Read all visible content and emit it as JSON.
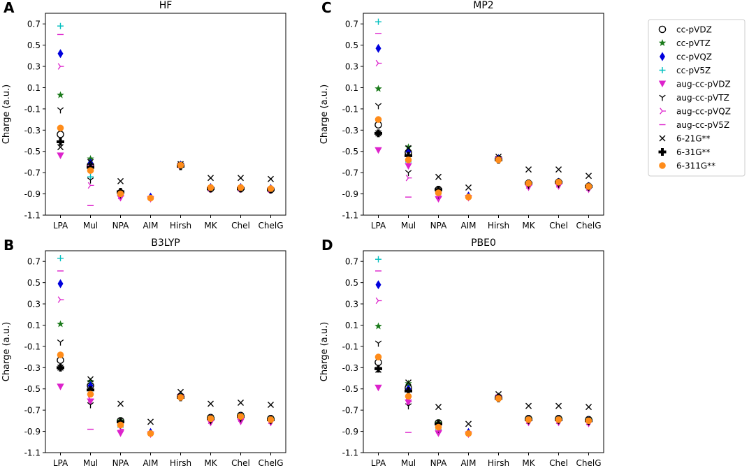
{
  "chart_data": {
    "type": "scatter",
    "categories": [
      "LPA",
      "Mul",
      "NPA",
      "AIM",
      "Hirsh",
      "MK",
      "Chel",
      "ChelG"
    ],
    "ylabel": "Charge (a.u.)",
    "ylim": [
      -1.1,
      0.8
    ],
    "yticks": [
      "0.7",
      "0.5",
      "0.3",
      "0.1",
      "-0.1",
      "-0.3",
      "-0.5",
      "-0.7",
      "-0.9",
      "-1.1"
    ],
    "legend": [
      {
        "name": "cc-pVDZ",
        "marker": "open-circle",
        "color": "#000000"
      },
      {
        "name": "cc-pVTZ",
        "marker": "star",
        "color": "#1a7a1a"
      },
      {
        "name": "cc-pVQZ",
        "marker": "thin-diamond",
        "color": "#0000dd"
      },
      {
        "name": "cc-pV5Z",
        "marker": "plus",
        "color": "#00bfbf"
      },
      {
        "name": "aug-cc-pVDZ",
        "marker": "triangle-down",
        "color": "#dd22cc"
      },
      {
        "name": "aug-cc-pVTZ",
        "marker": "tri-down",
        "color": "#000000"
      },
      {
        "name": "aug-cc-pVQZ",
        "marker": "tri-right",
        "color": "#dd22cc"
      },
      {
        "name": "aug-cc-pV5Z",
        "marker": "hline",
        "color": "#dd22cc"
      },
      {
        "name": "6-21G**",
        "marker": "x",
        "color": "#000000"
      },
      {
        "name": "6-31G**",
        "marker": "filled-plus",
        "color": "#000000"
      },
      {
        "name": "6-311G**",
        "marker": "filled-circle",
        "color": "#ff8c1a"
      }
    ],
    "panels": [
      {
        "letter": "A",
        "title": "HF",
        "series": [
          {
            "name": "cc-pVDZ",
            "values": [
              -0.34,
              -0.63,
              -0.89,
              null,
              -0.63,
              -0.85,
              -0.85,
              -0.86
            ]
          },
          {
            "name": "cc-pVTZ",
            "values": [
              0.03,
              -0.57,
              -0.88,
              null,
              -0.62,
              -0.84,
              -0.84,
              -0.85
            ]
          },
          {
            "name": "cc-pVQZ",
            "values": [
              0.42,
              -0.61,
              -0.89,
              -0.93,
              -0.63,
              -0.84,
              -0.84,
              -0.85
            ]
          },
          {
            "name": "cc-pV5Z",
            "values": [
              0.68,
              -0.74,
              -0.9,
              null,
              -0.63,
              -0.85,
              -0.85,
              -0.86
            ]
          },
          {
            "name": "aug-cc-pVDZ",
            "values": [
              -0.54,
              -0.66,
              -0.94,
              -0.95,
              -0.64,
              -0.86,
              -0.86,
              -0.87
            ]
          },
          {
            "name": "aug-cc-pVTZ",
            "values": [
              -0.11,
              -0.77,
              -0.91,
              null,
              -0.63,
              -0.85,
              -0.85,
              -0.86
            ]
          },
          {
            "name": "aug-cc-pVQZ",
            "values": [
              0.3,
              -0.82,
              -0.92,
              null,
              -0.63,
              -0.85,
              -0.85,
              -0.86
            ]
          },
          {
            "name": "aug-cc-pV5Z",
            "values": [
              0.6,
              -1.01,
              -0.92,
              null,
              -0.63,
              -0.85,
              -0.85,
              -0.86
            ]
          },
          {
            "name": "6-21G**",
            "values": [
              -0.46,
              -0.6,
              -0.78,
              null,
              -0.62,
              -0.75,
              -0.75,
              -0.76
            ]
          },
          {
            "name": "6-31G**",
            "values": [
              -0.41,
              -0.65,
              -0.88,
              null,
              -0.64,
              -0.85,
              -0.85,
              -0.86
            ]
          },
          {
            "name": "6-311G**",
            "values": [
              -0.28,
              -0.68,
              -0.9,
              -0.94,
              -0.63,
              -0.84,
              -0.84,
              -0.85
            ]
          }
        ]
      },
      {
        "letter": "C",
        "title": "MP2",
        "series": [
          {
            "name": "cc-pVDZ",
            "values": [
              -0.25,
              -0.51,
              -0.86,
              null,
              -0.57,
              -0.8,
              -0.79,
              -0.83
            ]
          },
          {
            "name": "cc-pVTZ",
            "values": [
              0.09,
              -0.46,
              -0.86,
              null,
              -0.56,
              -0.8,
              -0.79,
              -0.83
            ]
          },
          {
            "name": "cc-pVQZ",
            "values": [
              0.47,
              -0.5,
              -0.88,
              -0.92,
              -0.57,
              -0.81,
              -0.79,
              -0.83
            ]
          },
          {
            "name": "cc-pV5Z",
            "values": [
              0.72,
              -0.6,
              -0.9,
              null,
              -0.57,
              -0.81,
              -0.8,
              -0.84
            ]
          },
          {
            "name": "aug-cc-pVDZ",
            "values": [
              -0.49,
              -0.64,
              -0.95,
              -0.94,
              -0.58,
              -0.84,
              -0.83,
              -0.86
            ]
          },
          {
            "name": "aug-cc-pVTZ",
            "values": [
              -0.07,
              -0.7,
              -0.91,
              null,
              -0.57,
              -0.82,
              -0.81,
              -0.84
            ]
          },
          {
            "name": "aug-cc-pVQZ",
            "values": [
              0.33,
              -0.75,
              -0.92,
              null,
              -0.57,
              -0.82,
              -0.81,
              -0.84
            ]
          },
          {
            "name": "aug-cc-pV5Z",
            "values": [
              0.61,
              -0.93,
              -0.93,
              null,
              -0.57,
              -0.82,
              -0.81,
              -0.84
            ]
          },
          {
            "name": "6-21G**",
            "values": [
              -0.33,
              -0.47,
              -0.74,
              -0.84,
              -0.55,
              -0.67,
              -0.67,
              -0.73
            ]
          },
          {
            "name": "6-31G**",
            "values": [
              -0.33,
              -0.54,
              -0.86,
              null,
              -0.58,
              -0.8,
              -0.79,
              -0.83
            ]
          },
          {
            "name": "6-311G**",
            "values": [
              -0.2,
              -0.58,
              -0.89,
              -0.93,
              -0.58,
              -0.8,
              -0.79,
              -0.83
            ]
          }
        ]
      },
      {
        "letter": "B",
        "title": "B3LYP",
        "series": [
          {
            "name": "cc-pVDZ",
            "values": [
              -0.23,
              -0.47,
              -0.8,
              null,
              -0.57,
              -0.77,
              -0.75,
              -0.78
            ]
          },
          {
            "name": "cc-pVTZ",
            "values": [
              0.11,
              -0.43,
              -0.8,
              null,
              -0.56,
              -0.77,
              -0.75,
              -0.78
            ]
          },
          {
            "name": "cc-pVQZ",
            "values": [
              0.49,
              -0.47,
              -0.83,
              -0.91,
              -0.57,
              -0.78,
              -0.76,
              -0.79
            ]
          },
          {
            "name": "cc-pV5Z",
            "values": [
              0.73,
              -0.55,
              -0.86,
              null,
              -0.57,
              -0.79,
              -0.77,
              -0.8
            ]
          },
          {
            "name": "aug-cc-pVDZ",
            "values": [
              -0.48,
              -0.62,
              -0.92,
              -0.93,
              -0.58,
              -0.82,
              -0.81,
              -0.82
            ]
          },
          {
            "name": "aug-cc-pVTZ",
            "values": [
              -0.06,
              -0.65,
              -0.86,
              null,
              -0.57,
              -0.8,
              -0.78,
              -0.8
            ]
          },
          {
            "name": "aug-cc-pVQZ",
            "values": [
              0.34,
              -0.6,
              -0.88,
              null,
              -0.57,
              -0.8,
              -0.78,
              -0.8
            ]
          },
          {
            "name": "aug-cc-pV5Z",
            "values": [
              0.61,
              -0.88,
              -0.89,
              null,
              -0.57,
              -0.8,
              -0.78,
              -0.8
            ]
          },
          {
            "name": "6-21G**",
            "values": [
              -0.3,
              -0.41,
              -0.64,
              -0.81,
              -0.53,
              -0.64,
              -0.63,
              -0.65
            ]
          },
          {
            "name": "6-31G**",
            "values": [
              -0.3,
              -0.51,
              -0.81,
              null,
              -0.58,
              -0.78,
              -0.76,
              -0.79
            ]
          },
          {
            "name": "6-311G**",
            "values": [
              -0.18,
              -0.55,
              -0.84,
              -0.92,
              -0.58,
              -0.78,
              -0.76,
              -0.79
            ]
          }
        ]
      },
      {
        "letter": "D",
        "title": "PBE0",
        "series": [
          {
            "name": "cc-pVDZ",
            "values": [
              -0.25,
              -0.49,
              -0.82,
              null,
              -0.58,
              -0.78,
              -0.78,
              -0.79
            ]
          },
          {
            "name": "cc-pVTZ",
            "values": [
              0.09,
              -0.45,
              -0.82,
              null,
              -0.57,
              -0.78,
              -0.78,
              -0.79
            ]
          },
          {
            "name": "cc-pVQZ",
            "values": [
              0.48,
              -0.5,
              -0.85,
              -0.91,
              -0.58,
              -0.79,
              -0.79,
              -0.8
            ]
          },
          {
            "name": "cc-pV5Z",
            "values": [
              0.72,
              -0.57,
              -0.88,
              null,
              -0.58,
              -0.8,
              -0.8,
              -0.81
            ]
          },
          {
            "name": "aug-cc-pVDZ",
            "values": [
              -0.49,
              -0.63,
              -0.92,
              -0.93,
              -0.59,
              -0.82,
              -0.82,
              -0.83
            ]
          },
          {
            "name": "aug-cc-pVTZ",
            "values": [
              -0.07,
              -0.66,
              -0.88,
              null,
              -0.58,
              -0.8,
              -0.8,
              -0.81
            ]
          },
          {
            "name": "aug-cc-pVQZ",
            "values": [
              0.33,
              -0.62,
              -0.89,
              null,
              -0.58,
              -0.8,
              -0.8,
              -0.81
            ]
          },
          {
            "name": "aug-cc-pV5Z",
            "values": [
              0.61,
              -0.91,
              -0.9,
              null,
              -0.58,
              -0.8,
              -0.8,
              -0.81
            ]
          },
          {
            "name": "6-21G**",
            "values": [
              -0.32,
              -0.44,
              -0.67,
              -0.83,
              -0.55,
              -0.66,
              -0.66,
              -0.67
            ]
          },
          {
            "name": "6-31G**",
            "values": [
              -0.31,
              -0.52,
              -0.83,
              null,
              -0.59,
              -0.79,
              -0.79,
              -0.8
            ]
          },
          {
            "name": "6-311G**",
            "values": [
              -0.2,
              -0.57,
              -0.86,
              -0.92,
              -0.59,
              -0.79,
              -0.79,
              -0.8
            ]
          }
        ]
      }
    ]
  }
}
